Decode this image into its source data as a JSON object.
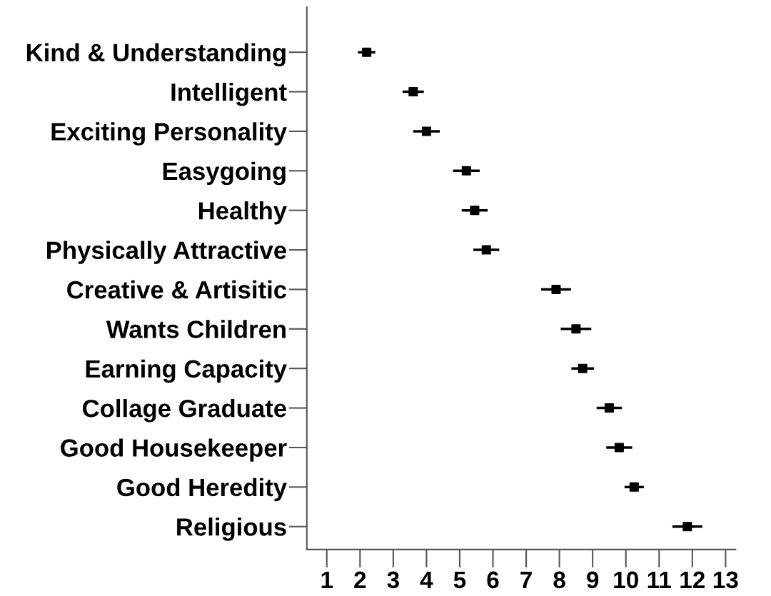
{
  "chart_data": {
    "type": "scatter",
    "orientation": "horizontal",
    "marker": "square",
    "grid": false,
    "legend": false,
    "categories": [
      "Kind & Understanding",
      "Intelligent",
      "Exciting Personality",
      "Easygoing",
      "Healthy",
      "Physically Attractive",
      "Creative & Artisitic",
      "Wants Children",
      "Earning Capacity",
      "Collage Graduate",
      "Good Housekeeper",
      "Good Heredity",
      "Religious"
    ],
    "series": [
      {
        "color": "#000000",
        "values": [
          2.2,
          3.6,
          4.0,
          5.2,
          5.45,
          5.8,
          7.9,
          8.5,
          8.7,
          9.5,
          9.8,
          10.25,
          11.85
        ],
        "errors": [
          0.26,
          0.32,
          0.4,
          0.4,
          0.39,
          0.39,
          0.45,
          0.46,
          0.34,
          0.38,
          0.39,
          0.29,
          0.45
        ]
      }
    ],
    "xlim": [
      0.4,
      13.3
    ],
    "xticks": [
      1,
      2,
      3,
      4,
      5,
      6,
      7,
      8,
      9,
      10,
      11,
      12,
      13
    ]
  }
}
